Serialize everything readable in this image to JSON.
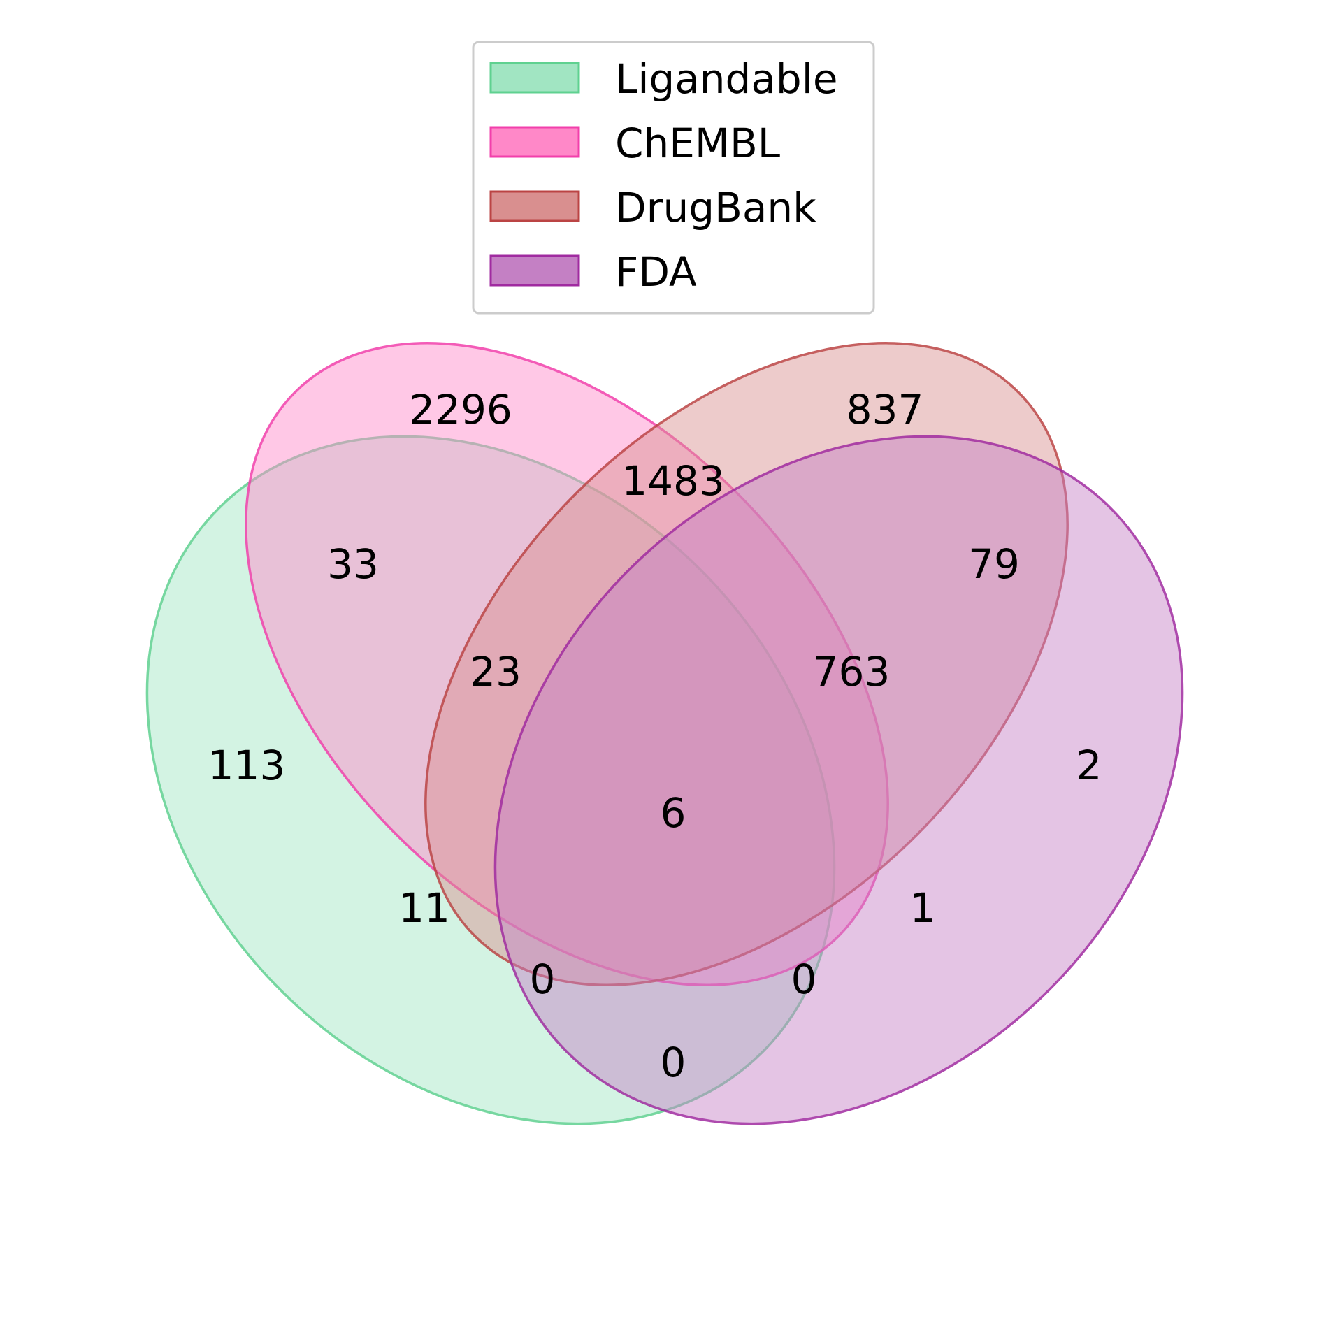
{
  "chart_data": {
    "type": "venn",
    "sets": [
      {
        "id": "ligandable",
        "name": "Ligandable",
        "fill": "#a1e5c2",
        "stroke": "#5fd190"
      },
      {
        "id": "chembl",
        "name": "ChEMBL",
        "fill": "#ff88c8",
        "stroke": "#f23fab"
      },
      {
        "id": "drugbank",
        "name": "DrugBank",
        "fill": "#d98f8f",
        "stroke": "#bb4444"
      },
      {
        "id": "fda",
        "name": "FDA",
        "fill": "#c480c4",
        "stroke": "#a02ba0"
      }
    ],
    "regions": [
      {
        "sets": [
          "chembl"
        ],
        "value": "2296"
      },
      {
        "sets": [
          "drugbank"
        ],
        "value": "837"
      },
      {
        "sets": [
          "chembl",
          "drugbank"
        ],
        "value": "1483"
      },
      {
        "sets": [
          "ligandable",
          "chembl"
        ],
        "value": "33"
      },
      {
        "sets": [
          "drugbank",
          "fda"
        ],
        "value": "79"
      },
      {
        "sets": [
          "ligandable",
          "chembl",
          "drugbank"
        ],
        "value": "23"
      },
      {
        "sets": [
          "chembl",
          "drugbank",
          "fda"
        ],
        "value": "763"
      },
      {
        "sets": [
          "ligandable"
        ],
        "value": "113"
      },
      {
        "sets": [
          "fda"
        ],
        "value": "2"
      },
      {
        "sets": [
          "ligandable",
          "chembl",
          "drugbank",
          "fda"
        ],
        "value": "6"
      },
      {
        "sets": [
          "ligandable",
          "drugbank"
        ],
        "value": "11"
      },
      {
        "sets": [
          "chembl",
          "fda"
        ],
        "value": "1"
      },
      {
        "sets": [
          "ligandable",
          "drugbank",
          "fda"
        ],
        "value": "0"
      },
      {
        "sets": [
          "ligandable",
          "chembl",
          "fda"
        ],
        "value": "0"
      },
      {
        "sets": [
          "ligandable",
          "fda"
        ],
        "value": "0"
      }
    ]
  }
}
